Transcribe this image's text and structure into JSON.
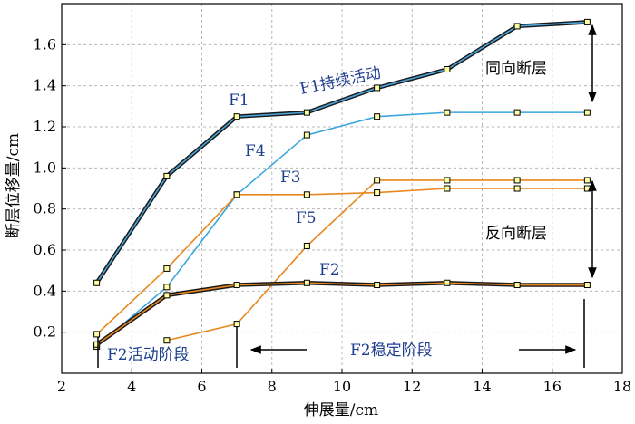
{
  "chart_data": {
    "type": "line",
    "xlabel": "伸展量/cm",
    "ylabel": "断层位移量/cm",
    "xlim": [
      2,
      18
    ],
    "ylim": [
      0,
      1.8
    ],
    "xticks": [
      "2",
      "4",
      "6",
      "8",
      "10",
      "12",
      "14",
      "16",
      "18"
    ],
    "yticks": [
      "0.2",
      "0.4",
      "0.6",
      "0.8",
      "1.0",
      "1.2",
      "1.4",
      "1.6"
    ],
    "grid": true,
    "series": [
      {
        "name": "F1",
        "color": "#1a1a1a",
        "inner_color": "#4aa3d8",
        "style": "double",
        "x": [
          3,
          5,
          7,
          9,
          11,
          13,
          15,
          17
        ],
        "y": [
          0.44,
          0.96,
          1.25,
          1.27,
          1.39,
          1.48,
          1.69,
          1.71
        ]
      },
      {
        "name": "F4",
        "color": "#3aa6dc",
        "x": [
          3,
          5,
          7,
          9,
          11,
          13,
          15,
          17
        ],
        "y": [
          0.13,
          0.42,
          0.87,
          1.16,
          1.25,
          1.27,
          1.27,
          1.27
        ]
      },
      {
        "name": "F3",
        "color": "#e8871e",
        "x": [
          3,
          5,
          7,
          9,
          11,
          13,
          15,
          17
        ],
        "y": [
          0.19,
          0.51,
          0.87,
          0.87,
          0.88,
          0.9,
          0.9,
          0.9
        ]
      },
      {
        "name": "F5",
        "color": "#e8871e",
        "x": [
          5,
          7,
          9,
          11,
          13,
          15,
          17
        ],
        "y": [
          0.16,
          0.24,
          0.62,
          0.94,
          0.94,
          0.94,
          0.94
        ]
      },
      {
        "name": "F2",
        "color": "#1a1a1a",
        "inner_color": "#e8871e",
        "style": "double",
        "x": [
          3,
          5,
          7,
          9,
          11,
          13,
          15,
          17
        ],
        "y": [
          0.14,
          0.38,
          0.43,
          0.44,
          0.43,
          0.44,
          0.43,
          0.43
        ]
      }
    ],
    "annotations": {
      "f1_label": "F1",
      "f1_activity": "F1持续活动",
      "f4_label": "F4",
      "f3_label": "F3",
      "f5_label": "F5",
      "f2_label": "F2",
      "same_direction": "同向断层",
      "reverse_direction": "反向断层",
      "f2_active": "F2活动阶段",
      "f2_stable": "F2稳定阶段"
    }
  }
}
